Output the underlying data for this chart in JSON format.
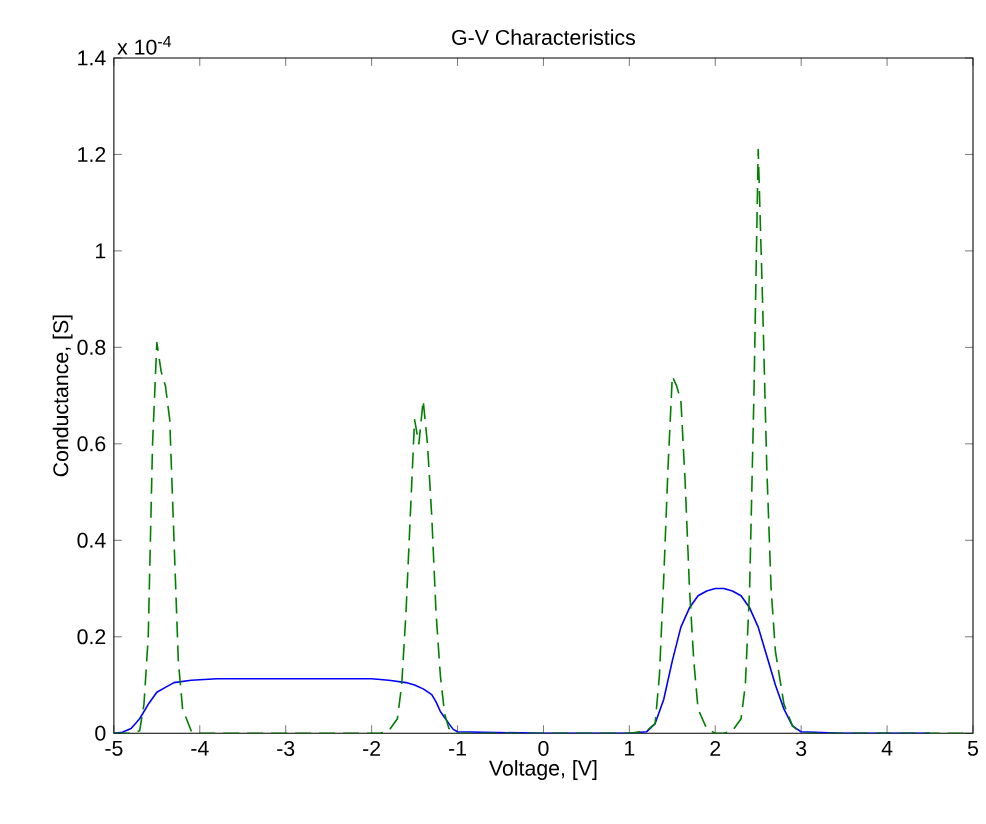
{
  "chart_data": {
    "type": "line",
    "title": "G-V Characteristics",
    "xlabel": "Voltage, [V]",
    "ylabel": "Conductance, [S]",
    "annotations": [
      "x 10$^{-4}$"
    ],
    "xlim": [
      -5,
      5
    ],
    "ylim": [
      0,
      1.4
    ],
    "xticks": [
      -5,
      -4,
      -3,
      -2,
      -1,
      0,
      1,
      2,
      3,
      4,
      5
    ],
    "yticks": [
      0,
      0.2,
      0.4,
      0.6,
      0.8,
      1,
      1.2,
      1.4
    ],
    "grid": false,
    "marker": "none",
    "series": [
      {
        "color": "#0000ff",
        "line_style": "solid",
        "x": [
          -5,
          -4.9,
          -4.8,
          -4.7,
          -4.6,
          -4.5,
          -4.4,
          -4.3,
          -4.1,
          -3.8,
          -3.5,
          -3,
          -2.5,
          -2,
          -1.8,
          -1.6,
          -1.5,
          -1.4,
          -1.3,
          -1.25,
          -1.2,
          -1.1,
          -1.05,
          -1,
          0,
          1,
          1.2,
          1.3,
          1.4,
          1.5,
          1.6,
          1.7,
          1.8,
          1.9,
          2,
          2.1,
          2.2,
          2.3,
          2.4,
          2.5,
          2.6,
          2.7,
          2.8,
          2.9,
          3,
          3.5,
          4,
          4.5
        ],
        "values": [
          0,
          0.002,
          0.01,
          0.03,
          0.06,
          0.085,
          0.095,
          0.105,
          0.11,
          0.113,
          0.113,
          0.113,
          0.113,
          0.113,
          0.11,
          0.105,
          0.1,
          0.092,
          0.08,
          0.065,
          0.045,
          0.02,
          0.008,
          0.003,
          0,
          0,
          0.003,
          0.02,
          0.07,
          0.15,
          0.22,
          0.26,
          0.285,
          0.295,
          0.3,
          0.3,
          0.295,
          0.285,
          0.26,
          0.22,
          0.16,
          0.1,
          0.05,
          0.015,
          0.003,
          0,
          0,
          0
        ]
      },
      {
        "color": "#007f00",
        "line_style": "dashed",
        "x": [
          -5,
          -4.8,
          -4.7,
          -4.65,
          -4.6,
          -4.55,
          -4.5,
          -4.45,
          -4.4,
          -4.35,
          -4.3,
          -4.25,
          -4.2,
          -4.1,
          -4.05,
          -3,
          -1.9,
          -1.8,
          -1.7,
          -1.65,
          -1.6,
          -1.55,
          -1.5,
          -1.45,
          -1.4,
          -1.35,
          -1.3,
          -1.25,
          -1.2,
          -1.15,
          -1.1,
          -1.05,
          -1,
          1,
          1.2,
          1.3,
          1.35,
          1.4,
          1.45,
          1.5,
          1.55,
          1.6,
          1.65,
          1.7,
          1.75,
          1.8,
          1.9,
          2,
          2.1,
          2.2,
          2.3,
          2.35,
          2.4,
          2.45,
          2.5,
          2.55,
          2.6,
          2.65,
          2.7,
          2.8,
          2.9,
          3,
          4,
          5
        ],
        "values": [
          0,
          0,
          0.005,
          0.06,
          0.2,
          0.6,
          0.81,
          0.75,
          0.72,
          0.65,
          0.4,
          0.15,
          0.05,
          0.005,
          0,
          0,
          0,
          0.005,
          0.03,
          0.1,
          0.25,
          0.45,
          0.65,
          0.6,
          0.69,
          0.6,
          0.45,
          0.25,
          0.12,
          0.04,
          0.01,
          0.003,
          0,
          0,
          0.005,
          0.02,
          0.12,
          0.32,
          0.55,
          0.74,
          0.72,
          0.69,
          0.52,
          0.3,
          0.15,
          0.05,
          0.01,
          0,
          0,
          0.005,
          0.03,
          0.1,
          0.3,
          0.7,
          1.21,
          0.9,
          0.55,
          0.3,
          0.17,
          0.06,
          0.015,
          0,
          0,
          0
        ]
      }
    ]
  }
}
